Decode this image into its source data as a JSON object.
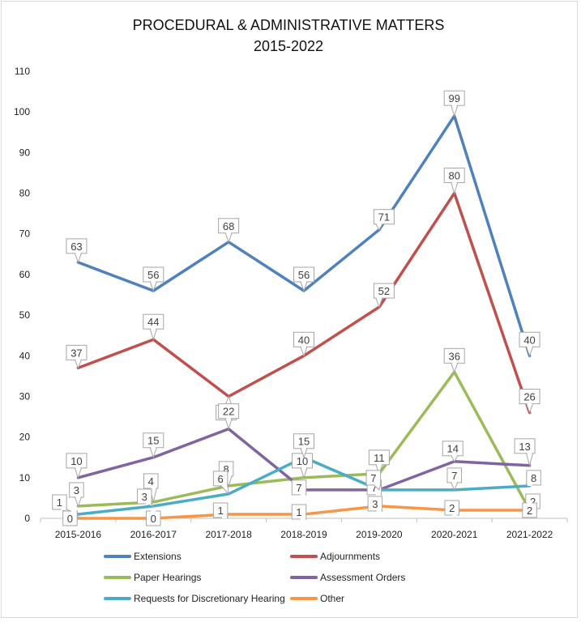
{
  "chart_data": {
    "type": "line",
    "title": "PROCEDURAL & ADMINISTRATIVE MATTERS",
    "subtitle": "2015-2022",
    "categories": [
      "2015-2016",
      "2016-2017",
      "2017-2018",
      "2018-2019",
      "2019-2020",
      "2020-2021",
      "2021-2022"
    ],
    "ylim": [
      0,
      110
    ],
    "yticks": [
      0,
      10,
      20,
      30,
      40,
      50,
      60,
      70,
      80,
      90,
      100,
      110
    ],
    "grid": false,
    "legend_position": "bottom",
    "series": [
      {
        "name": "Extensions",
        "color": "#4f81bd",
        "values": [
          63,
          56,
          68,
          56,
          71,
          99,
          40
        ]
      },
      {
        "name": "Adjournments",
        "color": "#c0504d",
        "values": [
          37,
          44,
          30,
          40,
          52,
          80,
          26
        ]
      },
      {
        "name": "Paper Hearings",
        "color": "#9bbb59",
        "values": [
          3,
          4,
          8,
          10,
          11,
          36,
          2
        ]
      },
      {
        "name": "Assessment Orders",
        "color": "#8064a2",
        "values": [
          10,
          15,
          22,
          7,
          7,
          14,
          13
        ]
      },
      {
        "name": "Requests for Discretionary Hearing",
        "color": "#4bacc6",
        "values": [
          1,
          3,
          6,
          15,
          7,
          7,
          8
        ]
      },
      {
        "name": "Other",
        "color": "#f79646",
        "values": [
          0,
          0,
          1,
          1,
          3,
          2,
          2
        ]
      }
    ]
  }
}
